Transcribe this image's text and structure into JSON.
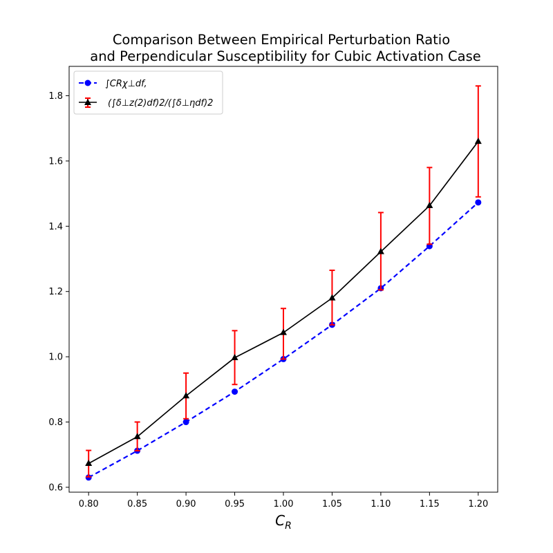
{
  "chart_data": {
    "type": "line",
    "title_line1": "Comparison Between Empirical Perturbation Ratio",
    "title_line2": "and Perpendicular Susceptibility for Cubic Activation Case",
    "xlabel": "C_R",
    "xlabel_main": "C",
    "xlabel_sub": "R",
    "ylabel": "",
    "x": [
      0.8,
      0.85,
      0.9,
      0.95,
      1.0,
      1.05,
      1.1,
      1.15,
      1.2
    ],
    "x_tick_labels": [
      "0.80",
      "0.85",
      "0.90",
      "0.95",
      "1.00",
      "1.05",
      "1.10",
      "1.15",
      "1.20"
    ],
    "y_ticks": [
      0.6,
      0.8,
      1.0,
      1.2,
      1.4,
      1.6,
      1.8
    ],
    "y_tick_labels": [
      "0.6",
      "0.8",
      "1.0",
      "1.2",
      "1.4",
      "1.6",
      "1.8"
    ],
    "xlim": [
      0.78,
      1.22
    ],
    "ylim": [
      0.585,
      1.89
    ],
    "grid": false,
    "legend_position": "top-left",
    "series": [
      {
        "name": "∫C_Rχ_⊥df,",
        "legend_label": "∫CRχ⊥df,",
        "color": "#0000ff",
        "style": "dashed",
        "marker": "circle",
        "values": [
          0.63,
          0.712,
          0.8,
          0.893,
          0.993,
          1.098,
          1.21,
          1.339,
          1.473
        ]
      },
      {
        "name": "(∫δ_⊥z^(2)df)^2/(∫δ_⊥ηdf)^2",
        "legend_label": "(∫δ⊥z(2)df)2/(∫δ⊥ηdf)2",
        "color": "#000000",
        "style": "solid",
        "marker": "triangle",
        "error_color": "#ff0000",
        "values": [
          0.673,
          0.755,
          0.88,
          0.997,
          1.074,
          1.18,
          1.322,
          1.463,
          1.66
        ],
        "error_low": [
          0.632,
          0.712,
          0.81,
          0.915,
          0.993,
          1.098,
          1.205,
          1.345,
          1.49
        ],
        "error_high": [
          0.713,
          0.8,
          0.95,
          1.08,
          1.148,
          1.265,
          1.442,
          1.58,
          1.83
        ]
      }
    ]
  }
}
